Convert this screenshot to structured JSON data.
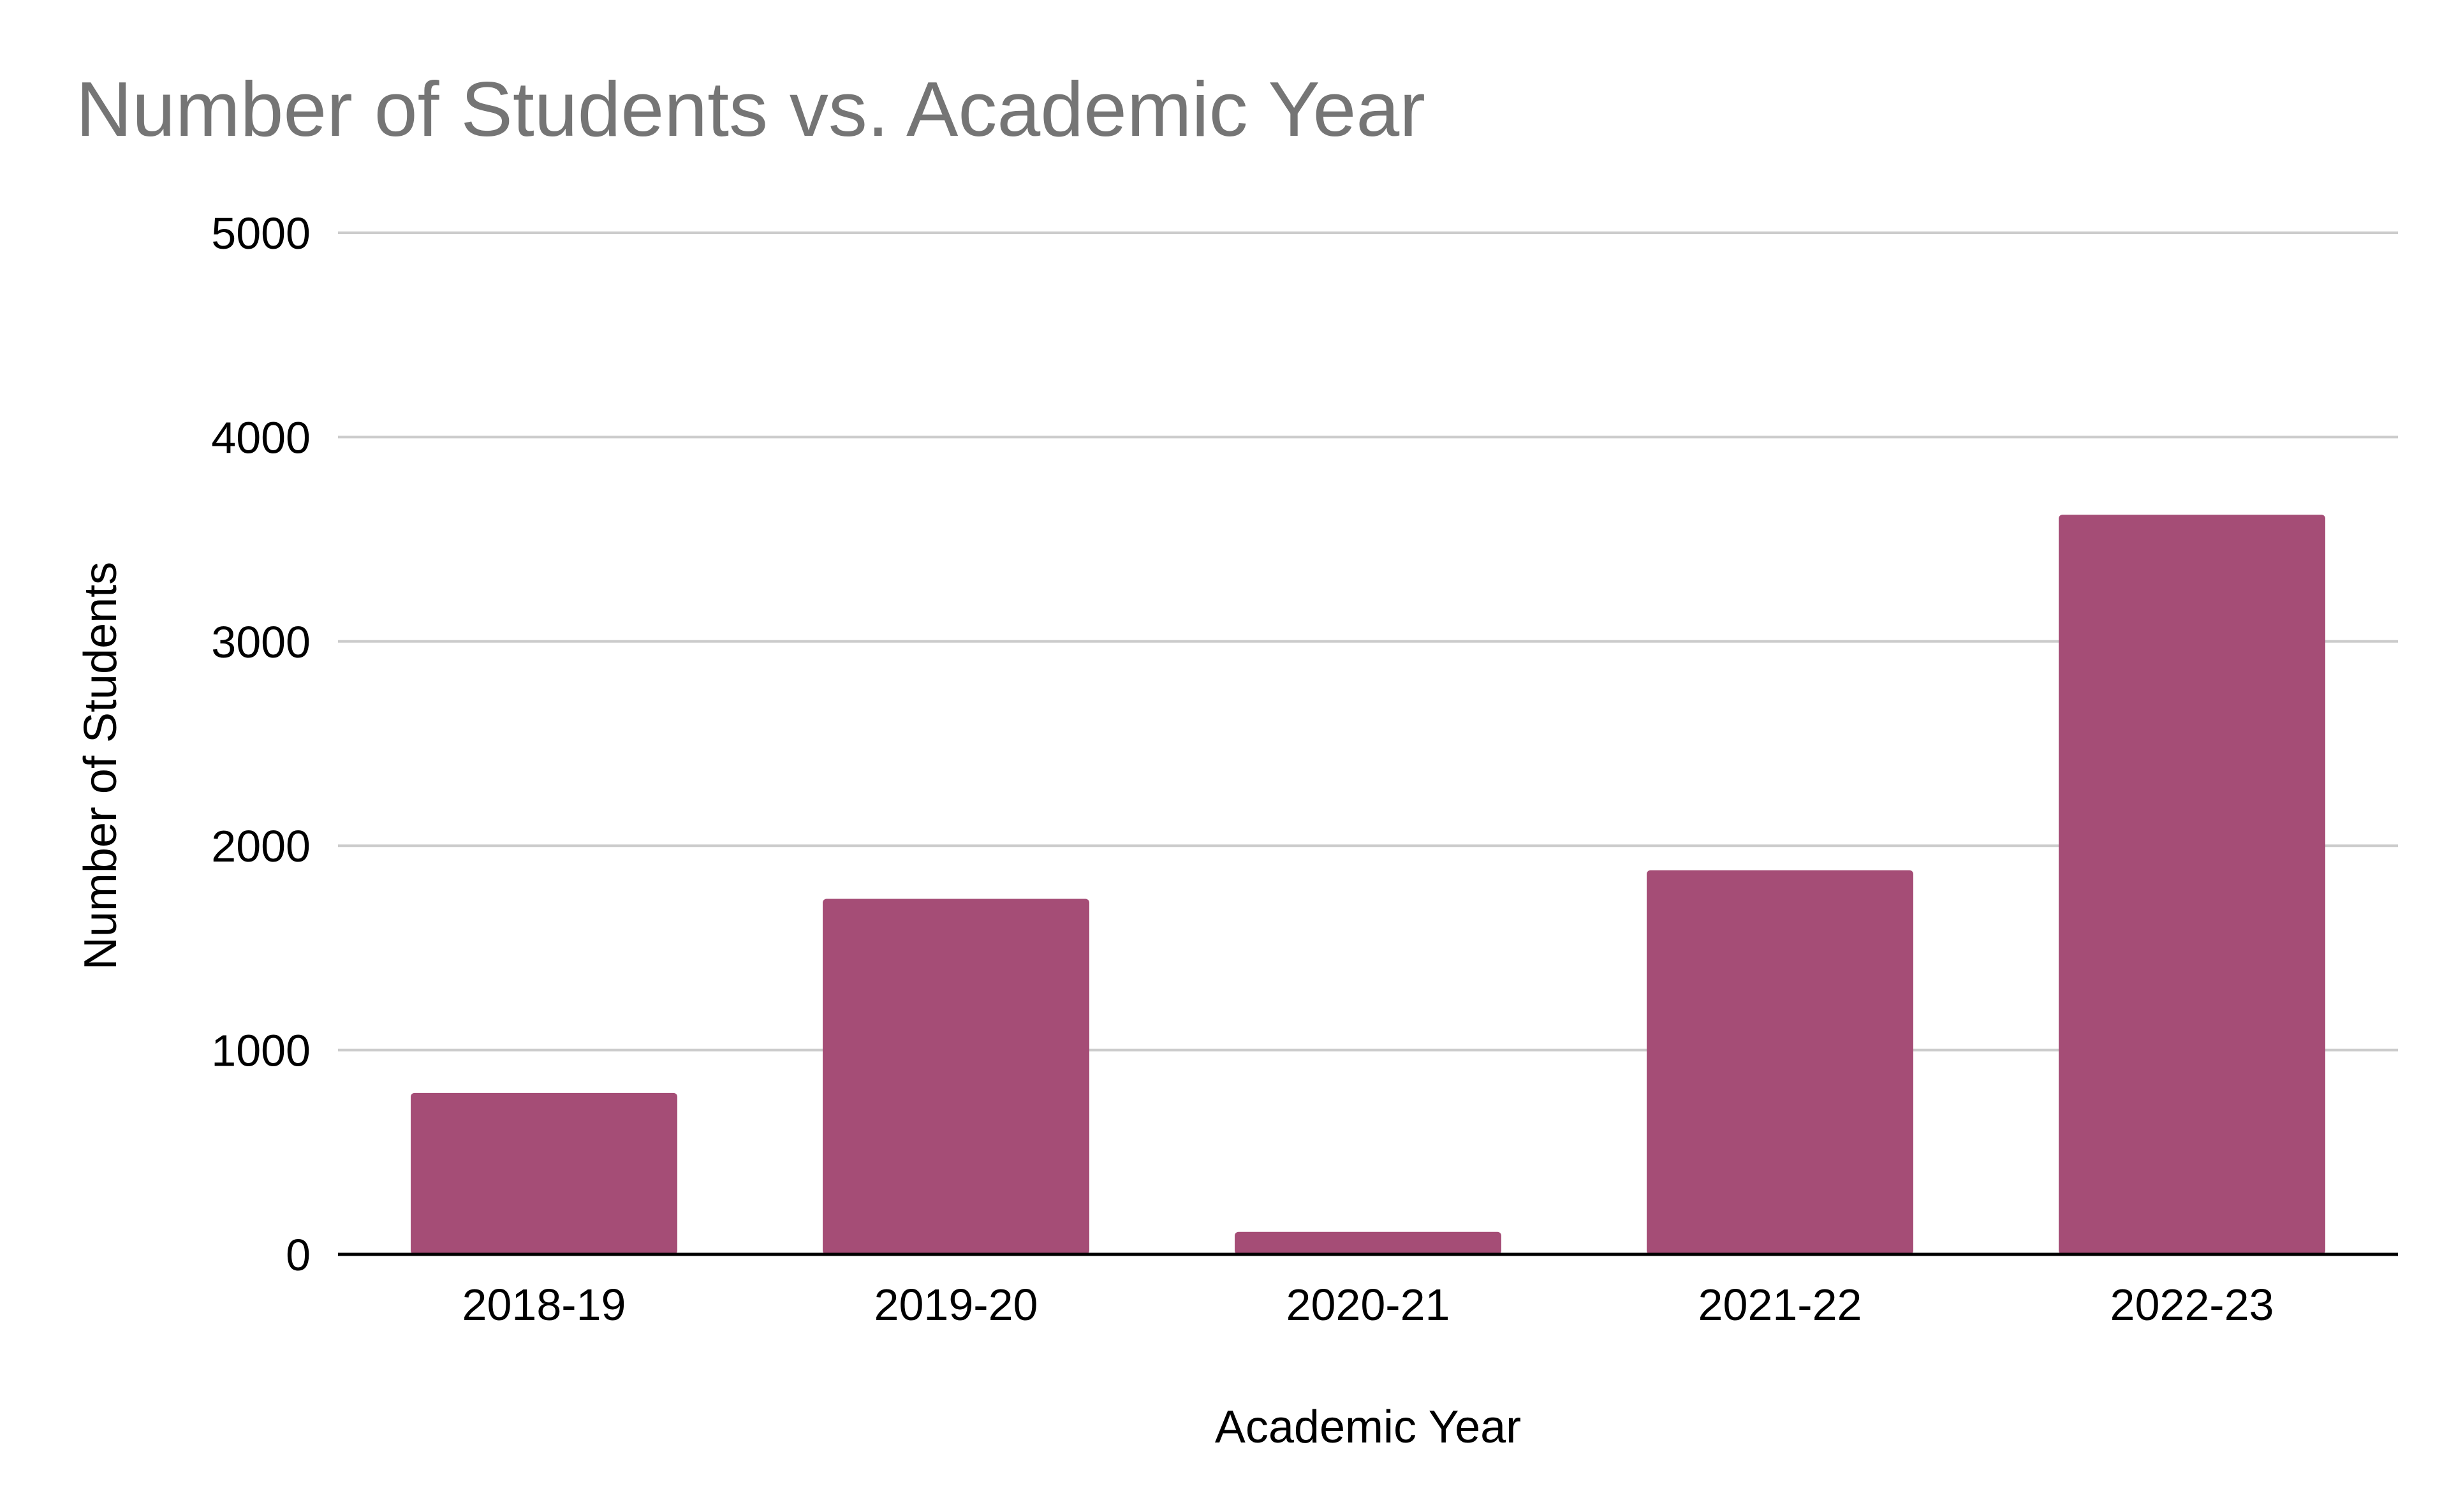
{
  "chart_data": {
    "type": "bar",
    "title": "Number of Students vs. Academic Year",
    "xlabel": "Academic Year",
    "ylabel": "Number of Students",
    "categories": [
      "2018-19",
      "2019-20",
      "2020-21",
      "2021-22",
      "2022-23"
    ],
    "values": [
      790,
      1740,
      110,
      1880,
      3620
    ],
    "ylim": [
      0,
      5000
    ],
    "yticks": [
      0,
      1000,
      2000,
      3000,
      4000,
      5000
    ],
    "grid": true,
    "legend": "none",
    "colors": {
      "bar": "#a54d76",
      "grid": "#cccccc",
      "axis": "#000000",
      "title": "#757575"
    }
  }
}
